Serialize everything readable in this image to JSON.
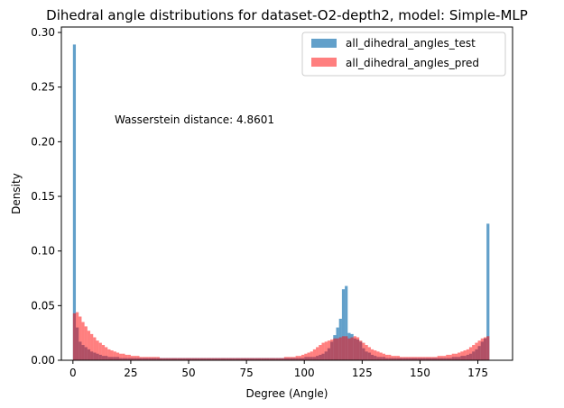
{
  "chart_data": {
    "type": "histogram",
    "title": "Dihedral angle distributions for dataset-O2-depth2, model: Simple-MLP",
    "xlabel": "Degree (Angle)",
    "ylabel": "Density",
    "xlim": [
      -5,
      190
    ],
    "ylim": [
      0,
      0.305
    ],
    "xticks": [
      0,
      25,
      50,
      75,
      100,
      125,
      150,
      175
    ],
    "yticks": [
      0.0,
      0.05,
      0.1,
      0.15,
      0.2,
      0.25,
      0.3
    ],
    "ytick_labels": [
      "0.00",
      "0.05",
      "0.10",
      "0.15",
      "0.20",
      "0.25",
      "0.30"
    ],
    "annotation": "Wasserstein distance: 4.8601",
    "annotation_pos_data": [
      18,
      0.22
    ],
    "legend_position": "upper right",
    "grid": false,
    "bin_width": 1.25,
    "series": [
      {
        "name": "all_dihedral_angles_test",
        "color": "#1f77b4",
        "alpha": 0.7,
        "bin_start": 0,
        "values": [
          0.289,
          0.03,
          0.017,
          0.014,
          0.012,
          0.01,
          0.008,
          0.007,
          0.006,
          0.005,
          0.004,
          0.004,
          0.003,
          0.003,
          0.003,
          0.003,
          0.002,
          0.002,
          0.002,
          0.002,
          0.002,
          0.002,
          0.002,
          0.002,
          0.002,
          0.002,
          0.002,
          0.002,
          0.002,
          0.002,
          0.002,
          0.002,
          0.002,
          0.002,
          0.002,
          0.002,
          0.002,
          0.002,
          0.002,
          0.002,
          0.002,
          0.002,
          0.002,
          0.002,
          0.002,
          0.002,
          0.002,
          0.002,
          0.002,
          0.002,
          0.002,
          0.002,
          0.002,
          0.002,
          0.002,
          0.002,
          0.002,
          0.002,
          0.002,
          0.002,
          0.002,
          0.002,
          0.002,
          0.002,
          0.002,
          0.002,
          0.002,
          0.002,
          0.002,
          0.002,
          0.002,
          0.002,
          0.002,
          0.002,
          0.002,
          0.002,
          0.002,
          0.002,
          0.002,
          0.002,
          0.003,
          0.003,
          0.003,
          0.003,
          0.004,
          0.005,
          0.006,
          0.008,
          0.011,
          0.017,
          0.023,
          0.03,
          0.038,
          0.065,
          0.068,
          0.025,
          0.024,
          0.02,
          0.019,
          0.017,
          0.011,
          0.008,
          0.007,
          0.005,
          0.004,
          0.003,
          0.003,
          0.003,
          0.002,
          0.002,
          0.002,
          0.002,
          0.002,
          0.002,
          0.002,
          0.002,
          0.002,
          0.002,
          0.002,
          0.002,
          0.002,
          0.002,
          0.002,
          0.002,
          0.002,
          0.002,
          0.002,
          0.002,
          0.002,
          0.002,
          0.002,
          0.003,
          0.003,
          0.003,
          0.004,
          0.004,
          0.005,
          0.006,
          0.008,
          0.01,
          0.013,
          0.017,
          0.02,
          0.125
        ]
      },
      {
        "name": "all_dihedral_angles_pred",
        "color": "#ff0000",
        "alpha": 0.5,
        "bin_start": 0,
        "values": [
          0.043,
          0.044,
          0.04,
          0.035,
          0.031,
          0.027,
          0.024,
          0.021,
          0.018,
          0.016,
          0.014,
          0.012,
          0.01,
          0.009,
          0.008,
          0.007,
          0.006,
          0.006,
          0.005,
          0.005,
          0.004,
          0.004,
          0.004,
          0.003,
          0.003,
          0.003,
          0.003,
          0.003,
          0.003,
          0.003,
          0.002,
          0.002,
          0.002,
          0.002,
          0.002,
          0.002,
          0.002,
          0.002,
          0.002,
          0.002,
          0.002,
          0.002,
          0.002,
          0.002,
          0.002,
          0.002,
          0.002,
          0.002,
          0.002,
          0.002,
          0.002,
          0.002,
          0.002,
          0.002,
          0.002,
          0.002,
          0.002,
          0.002,
          0.002,
          0.002,
          0.002,
          0.002,
          0.002,
          0.002,
          0.002,
          0.002,
          0.002,
          0.002,
          0.002,
          0.002,
          0.002,
          0.002,
          0.002,
          0.003,
          0.003,
          0.003,
          0.003,
          0.004,
          0.004,
          0.005,
          0.006,
          0.007,
          0.008,
          0.01,
          0.012,
          0.014,
          0.016,
          0.017,
          0.018,
          0.019,
          0.02,
          0.02,
          0.021,
          0.022,
          0.022,
          0.02,
          0.021,
          0.022,
          0.021,
          0.018,
          0.016,
          0.014,
          0.012,
          0.01,
          0.009,
          0.008,
          0.007,
          0.006,
          0.005,
          0.005,
          0.004,
          0.004,
          0.004,
          0.003,
          0.003,
          0.003,
          0.003,
          0.003,
          0.003,
          0.003,
          0.003,
          0.003,
          0.003,
          0.003,
          0.003,
          0.003,
          0.004,
          0.004,
          0.004,
          0.005,
          0.005,
          0.006,
          0.006,
          0.007,
          0.008,
          0.009,
          0.01,
          0.012,
          0.014,
          0.016,
          0.018,
          0.02,
          0.021,
          0.022
        ]
      }
    ]
  }
}
